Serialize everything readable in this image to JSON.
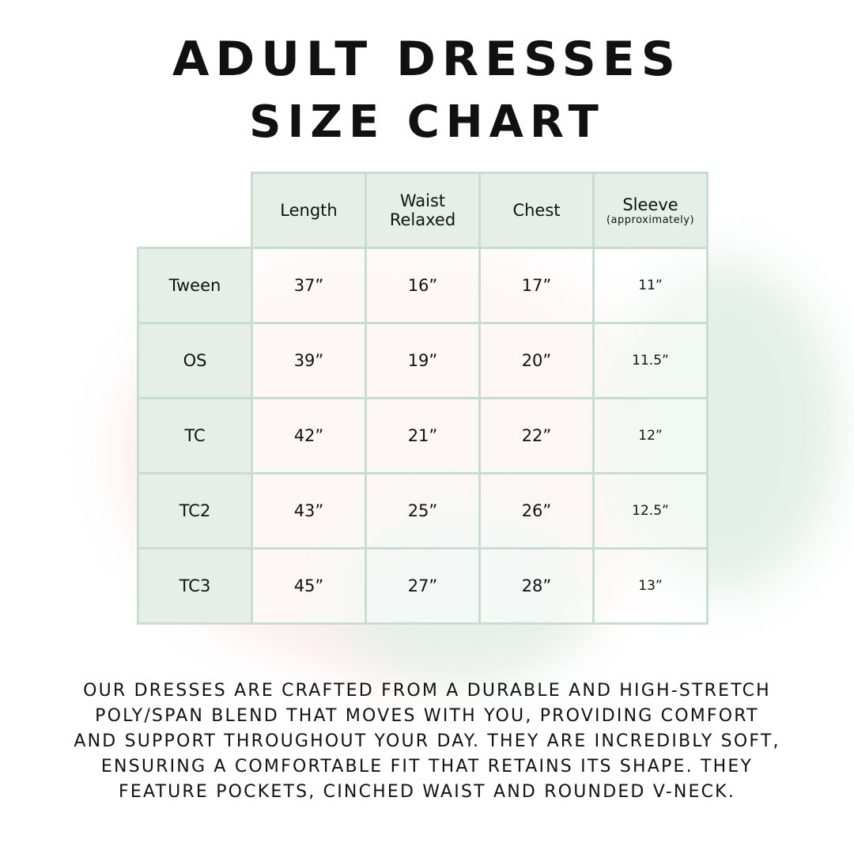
{
  "title": {
    "line1": "ADULT DRESSES",
    "line2": "SIZE CHART"
  },
  "table": {
    "headers": [
      {
        "label": "Length",
        "sub": ""
      },
      {
        "label": "Waist",
        "sub": "Relaxed"
      },
      {
        "label": "Chest",
        "sub": ""
      },
      {
        "label": "Sleeve",
        "sub": "(approximately)"
      }
    ],
    "rows": [
      {
        "size": "Tween",
        "values": [
          "37”",
          "16”",
          "17”",
          "11”"
        ]
      },
      {
        "size": "OS",
        "values": [
          "39”",
          "19”",
          "20”",
          "11.5”"
        ]
      },
      {
        "size": "TC",
        "values": [
          "42”",
          "21”",
          "22”",
          "12”"
        ]
      },
      {
        "size": "TC2",
        "values": [
          "43”",
          "25”",
          "26”",
          "12.5”"
        ]
      },
      {
        "size": "TC3",
        "values": [
          "45”",
          "27”",
          "28”",
          "13”"
        ]
      }
    ]
  },
  "description": [
    "OUR DRESSES ARE CRAFTED FROM A DURABLE AND HIGH-STRETCH",
    "POLY/SPAN BLEND THAT MOVES WITH YOU, PROVIDING COMFORT",
    "AND SUPPORT THROUGHOUT YOUR DAY. THEY ARE INCREDIBLY SOFT,",
    "ENSURING A COMFORTABLE FIT THAT RETAINS ITS SHAPE. THEY",
    "FEATURE POCKETS, CINCHED WAIST AND ROUNDED V-NECK."
  ],
  "colors": {
    "border": "#c7ddd0",
    "header_bg": "#e5efe8",
    "text": "#111111"
  }
}
